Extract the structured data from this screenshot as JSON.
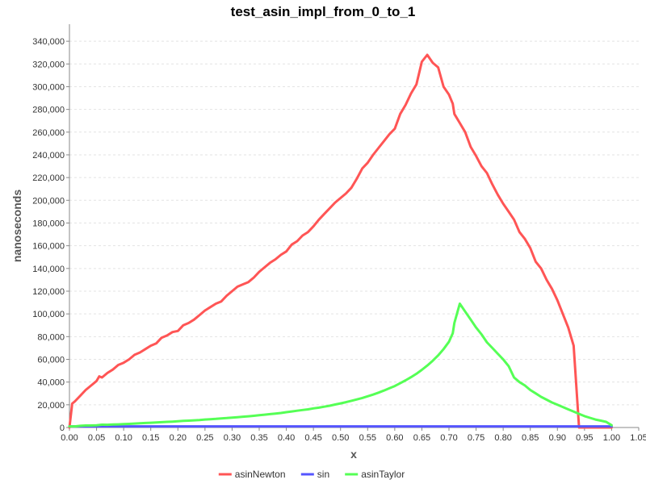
{
  "chart_data": {
    "type": "line",
    "title": "test_asin_impl_from_0_to_1",
    "xlabel": "x",
    "ylabel": "nanoseconds",
    "xlim": [
      0.0,
      1.05
    ],
    "ylim": [
      0,
      355000
    ],
    "grid": true,
    "legend_position": "bottom-center",
    "x_ticks": [
      "0.00",
      "0.05",
      "0.10",
      "0.15",
      "0.20",
      "0.25",
      "0.30",
      "0.35",
      "0.40",
      "0.45",
      "0.50",
      "0.55",
      "0.60",
      "0.65",
      "0.70",
      "0.75",
      "0.80",
      "0.85",
      "0.90",
      "0.95",
      "1.00",
      "1.05"
    ],
    "x_tick_values": [
      0.0,
      0.05,
      0.1,
      0.15,
      0.2,
      0.25,
      0.3,
      0.35,
      0.4,
      0.45,
      0.5,
      0.55,
      0.6,
      0.65,
      0.7,
      0.75,
      0.8,
      0.85,
      0.9,
      0.95,
      1.0,
      1.05
    ],
    "y_ticks": [
      "0",
      "20,000",
      "40,000",
      "60,000",
      "80,000",
      "100,000",
      "120,000",
      "140,000",
      "160,000",
      "180,000",
      "200,000",
      "220,000",
      "240,000",
      "260,000",
      "280,000",
      "300,000",
      "320,000",
      "340,000"
    ],
    "y_tick_values": [
      0,
      20000,
      40000,
      60000,
      80000,
      100000,
      120000,
      140000,
      160000,
      180000,
      200000,
      220000,
      240000,
      260000,
      280000,
      300000,
      320000,
      340000
    ],
    "series": [
      {
        "name": "asinNewton",
        "color": "#ff5555",
        "x": [
          0.0,
          0.005,
          0.01,
          0.02,
          0.03,
          0.04,
          0.05,
          0.055,
          0.06,
          0.07,
          0.08,
          0.09,
          0.1,
          0.11,
          0.12,
          0.13,
          0.14,
          0.15,
          0.16,
          0.17,
          0.18,
          0.19,
          0.2,
          0.21,
          0.22,
          0.23,
          0.24,
          0.25,
          0.26,
          0.27,
          0.28,
          0.29,
          0.3,
          0.31,
          0.32,
          0.33,
          0.34,
          0.35,
          0.36,
          0.37,
          0.38,
          0.39,
          0.4,
          0.41,
          0.42,
          0.43,
          0.44,
          0.45,
          0.46,
          0.47,
          0.48,
          0.49,
          0.5,
          0.51,
          0.52,
          0.53,
          0.54,
          0.55,
          0.56,
          0.57,
          0.58,
          0.59,
          0.6,
          0.61,
          0.62,
          0.63,
          0.64,
          0.65,
          0.66,
          0.67,
          0.68,
          0.69,
          0.7,
          0.707,
          0.71,
          0.72,
          0.73,
          0.74,
          0.75,
          0.76,
          0.77,
          0.78,
          0.79,
          0.8,
          0.81,
          0.82,
          0.83,
          0.84,
          0.85,
          0.86,
          0.87,
          0.88,
          0.89,
          0.9,
          0.91,
          0.92,
          0.93,
          0.94,
          0.95,
          0.96,
          0.97,
          0.98,
          0.99,
          1.0
        ],
        "y": [
          0,
          21000,
          23000,
          28000,
          33000,
          37000,
          41000,
          45000,
          44000,
          48000,
          51000,
          55000,
          57000,
          60000,
          64000,
          66000,
          69000,
          72000,
          74000,
          79000,
          81000,
          84000,
          85000,
          90000,
          92000,
          95000,
          99000,
          103000,
          106000,
          109000,
          111000,
          116000,
          120000,
          124000,
          126000,
          128000,
          132000,
          137000,
          141000,
          145000,
          148000,
          152000,
          155000,
          161000,
          164000,
          169000,
          172000,
          177000,
          183000,
          188000,
          193000,
          198000,
          202000,
          206000,
          211000,
          219000,
          228000,
          233000,
          240000,
          246000,
          252000,
          258000,
          263000,
          276000,
          284000,
          294000,
          302000,
          322000,
          328000,
          321000,
          317000,
          300000,
          293000,
          285000,
          276000,
          268000,
          260000,
          247000,
          239000,
          230000,
          224000,
          214000,
          205000,
          197000,
          190000,
          183000,
          172000,
          166000,
          158000,
          146000,
          140000,
          130000,
          122000,
          112000,
          100000,
          88000,
          72000,
          0,
          0,
          0,
          0,
          0,
          0,
          0
        ],
        "note_points": null
      },
      {
        "name": "sin",
        "color": "#5555ff",
        "x": [
          0.0,
          0.1,
          0.2,
          0.3,
          0.4,
          0.5,
          0.6,
          0.7,
          0.8,
          0.9,
          1.0
        ],
        "y": [
          1000,
          1000,
          1000,
          1000,
          1000,
          1000,
          1000,
          1000,
          1000,
          1000,
          1000
        ]
      },
      {
        "name": "asinTaylor",
        "color": "#55ff55",
        "x": [
          0.0,
          0.01,
          0.02,
          0.03,
          0.04,
          0.05,
          0.06,
          0.07,
          0.08,
          0.09,
          0.1,
          0.11,
          0.12,
          0.13,
          0.14,
          0.15,
          0.16,
          0.17,
          0.18,
          0.19,
          0.2,
          0.21,
          0.22,
          0.23,
          0.24,
          0.25,
          0.26,
          0.27,
          0.28,
          0.29,
          0.3,
          0.31,
          0.32,
          0.33,
          0.34,
          0.35,
          0.36,
          0.37,
          0.38,
          0.39,
          0.4,
          0.41,
          0.42,
          0.43,
          0.44,
          0.45,
          0.46,
          0.47,
          0.48,
          0.49,
          0.5,
          0.51,
          0.52,
          0.53,
          0.54,
          0.55,
          0.56,
          0.57,
          0.58,
          0.59,
          0.6,
          0.61,
          0.62,
          0.63,
          0.64,
          0.65,
          0.66,
          0.67,
          0.68,
          0.69,
          0.7,
          0.707,
          0.71,
          0.72,
          0.73,
          0.74,
          0.75,
          0.76,
          0.77,
          0.78,
          0.79,
          0.8,
          0.81,
          0.82,
          0.83,
          0.84,
          0.85,
          0.86,
          0.87,
          0.88,
          0.89,
          0.9,
          0.91,
          0.92,
          0.93,
          0.94,
          0.95,
          0.96,
          0.97,
          0.98,
          0.99,
          1.0
        ],
        "y": [
          1000,
          1000,
          1500,
          1800,
          1800,
          2000,
          2500,
          2400,
          2600,
          2800,
          3000,
          3200,
          3500,
          3700,
          4000,
          4200,
          4400,
          4700,
          5000,
          5200,
          5500,
          5800,
          6000,
          6300,
          6600,
          7000,
          7300,
          7600,
          8000,
          8300,
          8700,
          9100,
          9500,
          9900,
          10300,
          10800,
          11300,
          11800,
          12300,
          12800,
          13500,
          14100,
          14800,
          15400,
          16000,
          16800,
          17500,
          18300,
          19200,
          20200,
          21200,
          22300,
          23500,
          24700,
          26000,
          27500,
          29000,
          30700,
          32500,
          34500,
          36500,
          39000,
          41500,
          44300,
          47300,
          50800,
          54500,
          58800,
          63500,
          69000,
          75500,
          83000,
          92000,
          109000,
          102000,
          95000,
          88000,
          82000,
          75000,
          70000,
          65000,
          60000,
          54000,
          44000,
          40000,
          37000,
          33000,
          30000,
          27000,
          24500,
          22000,
          20000,
          18000,
          16000,
          14000,
          12000,
          10000,
          8500,
          7000,
          6000,
          5000,
          2000
        ]
      }
    ]
  }
}
